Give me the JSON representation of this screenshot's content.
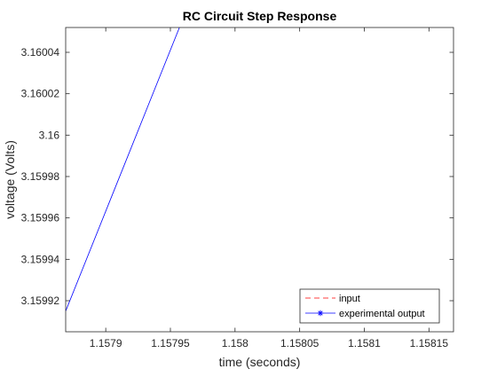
{
  "chart_data": {
    "type": "line",
    "title": "RC Circuit Step Response",
    "xlabel": "time (seconds)",
    "ylabel": "voltage (Volts)",
    "xlim": [
      1.157869,
      1.158169
    ],
    "ylim": [
      3.159905,
      3.160052
    ],
    "xticks": [
      1.1579,
      1.15795,
      1.158,
      1.15805,
      1.1581,
      1.15815
    ],
    "xtick_labels": [
      "1.1579",
      "1.15795",
      "1.158",
      "1.15805",
      "1.1581",
      "1.15815"
    ],
    "yticks": [
      3.15992,
      3.15994,
      3.15996,
      3.15998,
      3.16,
      3.16002,
      3.16004
    ],
    "ytick_labels": [
      "3.15992",
      "3.15994",
      "3.15996",
      "3.15998",
      "3.16",
      "3.16002",
      "3.16004"
    ],
    "grid": false,
    "box": true,
    "legend_position": "bottom-right",
    "series": [
      {
        "name": "input",
        "color": "#ff0000",
        "line_style": "dashed",
        "marker": "none",
        "points": []
      },
      {
        "name": "experimental output",
        "color": "#0000ff",
        "line_style": "solid",
        "marker": "asterisk",
        "points": [
          [
            1.157869,
            3.159915
          ],
          [
            1.157957,
            3.160052
          ]
        ]
      }
    ]
  }
}
